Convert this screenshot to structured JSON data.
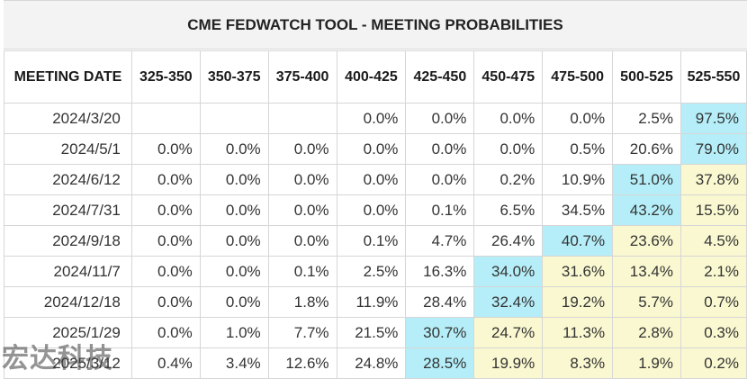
{
  "title": "CME FEDWATCH TOOL - MEETING PROBABILITIES",
  "columns": [
    "MEETING DATE",
    "325-350",
    "350-375",
    "375-400",
    "400-425",
    "425-450",
    "450-475",
    "475-500",
    "500-525",
    "525-550"
  ],
  "rows": [
    {
      "cells": [
        "2024/3/20",
        "",
        "",
        "",
        "0.0%",
        "0.0%",
        "0.0%",
        "0.0%",
        "2.5%",
        "97.5%"
      ],
      "highlight": [
        "",
        "",
        "",
        "",
        "",
        "",
        "",
        "",
        "",
        "blue"
      ]
    },
    {
      "cells": [
        "2024/5/1",
        "0.0%",
        "0.0%",
        "0.0%",
        "0.0%",
        "0.0%",
        "0.0%",
        "0.5%",
        "20.6%",
        "79.0%"
      ],
      "highlight": [
        "",
        "",
        "",
        "",
        "",
        "",
        "",
        "",
        "",
        "blue"
      ]
    },
    {
      "cells": [
        "2024/6/12",
        "0.0%",
        "0.0%",
        "0.0%",
        "0.0%",
        "0.0%",
        "0.2%",
        "10.9%",
        "51.0%",
        "37.8%"
      ],
      "highlight": [
        "",
        "",
        "",
        "",
        "",
        "",
        "",
        "",
        "blue",
        "yellow"
      ]
    },
    {
      "cells": [
        "2024/7/31",
        "0.0%",
        "0.0%",
        "0.0%",
        "0.0%",
        "0.1%",
        "6.5%",
        "34.5%",
        "43.2%",
        "15.5%"
      ],
      "highlight": [
        "",
        "",
        "",
        "",
        "",
        "",
        "",
        "",
        "blue",
        "yellow"
      ]
    },
    {
      "cells": [
        "2024/9/18",
        "0.0%",
        "0.0%",
        "0.0%",
        "0.1%",
        "4.7%",
        "26.4%",
        "40.7%",
        "23.6%",
        "4.5%"
      ],
      "highlight": [
        "",
        "",
        "",
        "",
        "",
        "",
        "",
        "blue",
        "yellow",
        "yellow"
      ]
    },
    {
      "cells": [
        "2024/11/7",
        "0.0%",
        "0.0%",
        "0.1%",
        "2.5%",
        "16.3%",
        "34.0%",
        "31.6%",
        "13.4%",
        "2.1%"
      ],
      "highlight": [
        "",
        "",
        "",
        "",
        "",
        "",
        "blue",
        "yellow",
        "yellow",
        "yellow"
      ]
    },
    {
      "cells": [
        "2024/12/18",
        "0.0%",
        "0.0%",
        "1.8%",
        "11.9%",
        "28.4%",
        "32.4%",
        "19.2%",
        "5.7%",
        "0.7%"
      ],
      "highlight": [
        "",
        "",
        "",
        "",
        "",
        "",
        "blue",
        "yellow",
        "yellow",
        "yellow"
      ]
    },
    {
      "cells": [
        "2025/1/29",
        "0.0%",
        "1.0%",
        "7.7%",
        "21.5%",
        "30.7%",
        "24.7%",
        "11.3%",
        "2.8%",
        "0.3%"
      ],
      "highlight": [
        "",
        "",
        "",
        "",
        "",
        "blue",
        "yellow",
        "yellow",
        "yellow",
        "yellow"
      ]
    },
    {
      "cells": [
        "2025/3/12",
        "0.4%",
        "3.4%",
        "12.6%",
        "24.8%",
        "28.5%",
        "19.9%",
        "8.3%",
        "1.9%",
        "0.2%"
      ],
      "highlight": [
        "",
        "",
        "",
        "",
        "",
        "blue",
        "yellow",
        "yellow",
        "yellow",
        "yellow"
      ]
    }
  ],
  "colors": {
    "highlight_blue": "#b5eef8",
    "highlight_yellow": "#f9f8d0"
  },
  "watermark": "宏达科技"
}
